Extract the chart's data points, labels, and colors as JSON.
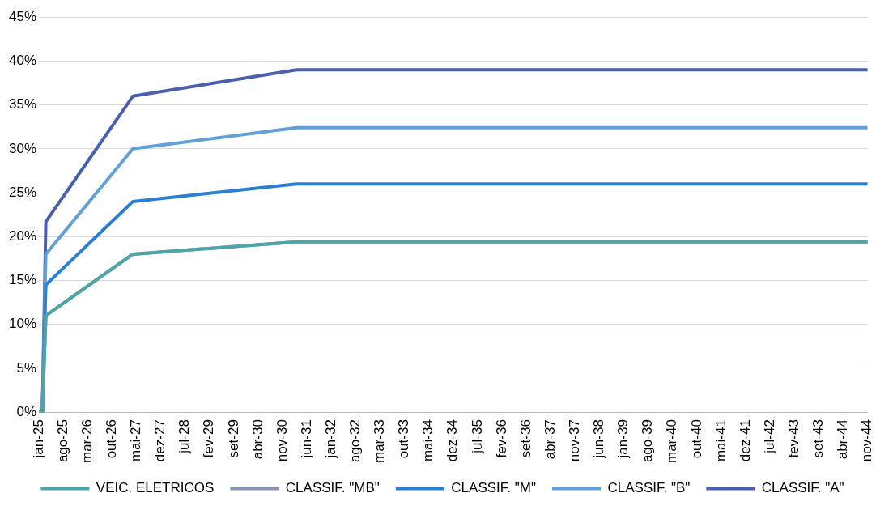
{
  "chart_data": {
    "type": "line",
    "x": [
      "2025-01",
      "2025-02",
      "2025-03",
      "2027-04",
      "2031-03",
      "2044-11"
    ],
    "series": [
      {
        "name": "CLASSIF. \"A\"",
        "color": "#4a5fae",
        "values": [
          0,
          0,
          21.7,
          36,
          39,
          39
        ]
      },
      {
        "name": "CLASSIF. \"B\"",
        "color": "#62a0d8",
        "values": [
          0,
          0,
          18,
          30,
          32.4,
          32.4
        ]
      },
      {
        "name": "CLASSIF. \"M\"",
        "color": "#2a7fd4",
        "values": [
          0,
          0,
          14.5,
          24,
          26,
          26
        ]
      },
      {
        "name": "CLASSIF. \"MB\"",
        "color": "#8497b0",
        "values": [
          0,
          0,
          11,
          18,
          19.4,
          19.4
        ]
      },
      {
        "name": "VEIC. ELETRICOS",
        "color": "#4ea5a8",
        "values": [
          0,
          0,
          11,
          18,
          19.4,
          19.4
        ]
      }
    ],
    "xlim": [
      "2025-01",
      "2044-11"
    ],
    "xticks": [
      {
        "value": "2025-01",
        "label": "jan-25"
      },
      {
        "value": "2025-08",
        "label": "ago-25"
      },
      {
        "value": "2026-03",
        "label": "mar-26"
      },
      {
        "value": "2026-10",
        "label": "out-26"
      },
      {
        "value": "2027-05",
        "label": "mai-27"
      },
      {
        "value": "2027-12",
        "label": "dez-27"
      },
      {
        "value": "2028-07",
        "label": "jul-28"
      },
      {
        "value": "2029-02",
        "label": "fev-29"
      },
      {
        "value": "2029-09",
        "label": "set-29"
      },
      {
        "value": "2030-04",
        "label": "abr-30"
      },
      {
        "value": "2030-11",
        "label": "nov-30"
      },
      {
        "value": "2031-06",
        "label": "jun-31"
      },
      {
        "value": "2032-01",
        "label": "jan-32"
      },
      {
        "value": "2032-08",
        "label": "ago-32"
      },
      {
        "value": "2033-03",
        "label": "mar-33"
      },
      {
        "value": "2033-10",
        "label": "out-33"
      },
      {
        "value": "2034-05",
        "label": "mai-34"
      },
      {
        "value": "2034-12",
        "label": "dez-34"
      },
      {
        "value": "2035-07",
        "label": "jul-35"
      },
      {
        "value": "2036-02",
        "label": "fev-36"
      },
      {
        "value": "2036-09",
        "label": "set-36"
      },
      {
        "value": "2037-04",
        "label": "abr-37"
      },
      {
        "value": "2037-11",
        "label": "nov-37"
      },
      {
        "value": "2038-06",
        "label": "jun-38"
      },
      {
        "value": "2039-01",
        "label": "jan-39"
      },
      {
        "value": "2039-08",
        "label": "ago-39"
      },
      {
        "value": "2040-03",
        "label": "mar-40"
      },
      {
        "value": "2040-10",
        "label": "out-40"
      },
      {
        "value": "2041-05",
        "label": "mai-41"
      },
      {
        "value": "2041-12",
        "label": "dez-41"
      },
      {
        "value": "2042-07",
        "label": "jul-42"
      },
      {
        "value": "2043-02",
        "label": "fev-43"
      },
      {
        "value": "2043-09",
        "label": "set-43"
      },
      {
        "value": "2044-04",
        "label": "abr-44"
      },
      {
        "value": "2044-11",
        "label": "nov-44"
      }
    ],
    "ylim": [
      0,
      45
    ],
    "yticks": [
      {
        "value": 0,
        "label": "0%"
      },
      {
        "value": 5,
        "label": "5%"
      },
      {
        "value": 10,
        "label": "10%"
      },
      {
        "value": 15,
        "label": "15%"
      },
      {
        "value": 20,
        "label": "20%"
      },
      {
        "value": 25,
        "label": "25%"
      },
      {
        "value": 30,
        "label": "30%"
      },
      {
        "value": 35,
        "label": "35%"
      },
      {
        "value": 40,
        "label": "40%"
      },
      {
        "value": 45,
        "label": "45%"
      }
    ],
    "grid": "y",
    "legend": "bottom",
    "marker": "none",
    "line_style": "solid"
  }
}
